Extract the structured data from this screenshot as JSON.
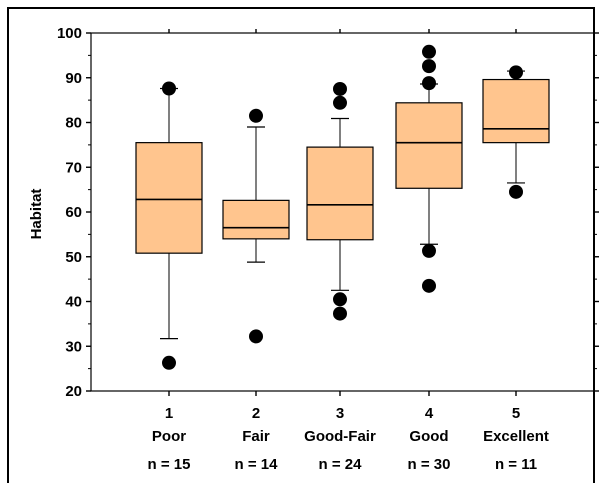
{
  "chart_data": {
    "type": "boxplot",
    "ylabel": "Habitat",
    "ylim": [
      20,
      100
    ],
    "yticks": [
      20,
      30,
      40,
      50,
      60,
      70,
      80,
      90,
      100
    ],
    "box_color": "#FFC58E",
    "categories": [
      {
        "num": "1",
        "name": "Poor",
        "n": "n = 15"
      },
      {
        "num": "2",
        "name": "Fair",
        "n": "n = 14"
      },
      {
        "num": "3",
        "name": "Good-Fair",
        "n": "n = 24"
      },
      {
        "num": "4",
        "name": "Good",
        "n": "n = 30"
      },
      {
        "num": "5",
        "name": "Excellent",
        "n": "n = 11"
      }
    ],
    "boxes": [
      {
        "whisker_low": 31.7,
        "q1": 50.8,
        "median": 62.8,
        "q3": 75.5,
        "whisker_high": 87.6,
        "outliers": [
          26.3,
          87.6
        ]
      },
      {
        "whisker_low": 48.8,
        "q1": 54.0,
        "median": 56.5,
        "q3": 62.6,
        "whisker_high": 79.0,
        "outliers": [
          32.2,
          81.5
        ]
      },
      {
        "whisker_low": 42.5,
        "q1": 53.8,
        "median": 61.6,
        "q3": 74.5,
        "whisker_high": 80.9,
        "outliers": [
          37.3,
          40.5,
          84.4,
          87.5
        ]
      },
      {
        "whisker_low": 52.8,
        "q1": 65.3,
        "median": 75.5,
        "q3": 84.4,
        "whisker_high": 88.6,
        "outliers": [
          43.5,
          51.3,
          88.8,
          92.6,
          95.8
        ]
      },
      {
        "whisker_low": 66.5,
        "q1": 75.5,
        "median": 78.6,
        "q3": 89.6,
        "whisker_high": 91.5,
        "outliers": [
          64.5,
          91.2
        ]
      }
    ]
  }
}
